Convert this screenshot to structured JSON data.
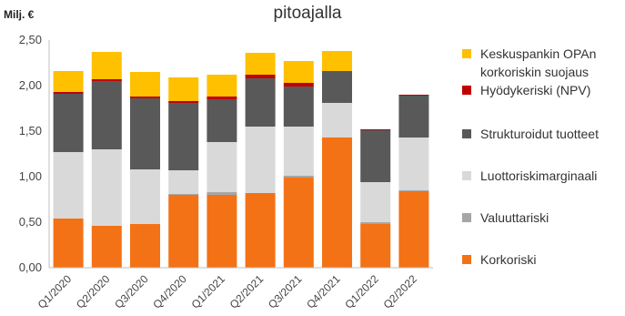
{
  "chart_data": {
    "type": "bar",
    "stacked": true,
    "title": "pitoajalla",
    "ylabel": "Milj. €",
    "xlabel": "",
    "ylim": [
      0,
      2.5
    ],
    "yticks": [
      "0,00",
      "0,50",
      "1,00",
      "1,50",
      "2,00",
      "2,50"
    ],
    "grid": false,
    "legend_position": "right",
    "categories": [
      "Q1/2020",
      "Q2/2020",
      "Q3/2020",
      "Q4/2020",
      "Q1/2021",
      "Q2/2021",
      "Q3/2021",
      "Q4/2021",
      "Q1/2022",
      "Q2/2022"
    ],
    "series": [
      {
        "name": "Korkoriski",
        "color": "#F47216",
        "values": [
          0.54,
          0.46,
          0.48,
          0.8,
          0.8,
          0.82,
          0.99,
          1.43,
          0.48,
          0.84
        ]
      },
      {
        "name": "Valuuttariski",
        "color": "#A6A6A6",
        "values": [
          0.0,
          0.0,
          0.0,
          0.01,
          0.03,
          0.0,
          0.02,
          0.0,
          0.02,
          0.01
        ]
      },
      {
        "name": "Luottoriskimarginaali",
        "color": "#D9D9D9",
        "values": [
          0.73,
          0.84,
          0.6,
          0.26,
          0.55,
          0.73,
          0.54,
          0.38,
          0.44,
          0.58
        ]
      },
      {
        "name": "Strukturoidut tuotteet",
        "color": "#595959",
        "values": [
          0.64,
          0.75,
          0.78,
          0.74,
          0.47,
          0.53,
          0.44,
          0.35,
          0.57,
          0.46
        ]
      },
      {
        "name": "Hyödykeriski (NPV)",
        "color": "#C00000",
        "values": [
          0.02,
          0.02,
          0.02,
          0.02,
          0.03,
          0.04,
          0.04,
          0.0,
          0.01,
          0.01
        ]
      },
      {
        "name": "Keskuspankin OPAn korkoriskin suojaus",
        "color": "#FFC000",
        "values": [
          0.23,
          0.3,
          0.27,
          0.26,
          0.24,
          0.24,
          0.24,
          0.22,
          0.0,
          0.0
        ]
      }
    ],
    "legend": [
      {
        "lines": [
          "Keskuspankin OPAn",
          "korkoriskin suojaus"
        ],
        "color": "#FFC000"
      },
      {
        "lines": [
          "Hyödykeriski (NPV)"
        ],
        "color": "#C00000"
      },
      {
        "lines": [
          "Strukturoidut tuotteet"
        ],
        "color": "#595959"
      },
      {
        "lines": [
          "Luottoriskimarginaali"
        ],
        "color": "#D9D9D9"
      },
      {
        "lines": [
          "Valuuttariski"
        ],
        "color": "#A6A6A6"
      },
      {
        "lines": [
          "Korkoriski"
        ],
        "color": "#F47216"
      }
    ]
  }
}
